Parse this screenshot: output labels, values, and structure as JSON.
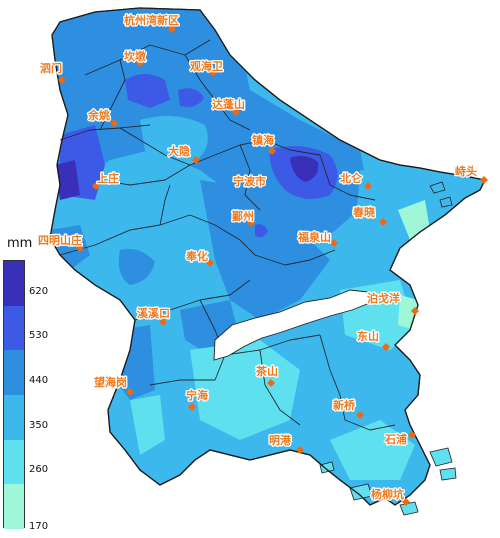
{
  "legend": {
    "unit": "mm",
    "ticks": [
      "620",
      "530",
      "440",
      "350",
      "260",
      "170"
    ],
    "bins": [
      {
        "label": "> 620",
        "color": "#3a2fb8"
      },
      {
        "label": "530-620",
        "color": "#3d5ae6"
      },
      {
        "label": "440-530",
        "color": "#2e8fe0"
      },
      {
        "label": "350-440",
        "color": "#3cb8ec"
      },
      {
        "label": "260-350",
        "color": "#5fe0ef"
      },
      {
        "label": "170-260",
        "color": "#9ef7d6"
      }
    ]
  },
  "places": [
    {
      "id": "hangzhouwan",
      "name": "杭州湾新区"
    },
    {
      "id": "kandun",
      "name": "坎墩"
    },
    {
      "id": "simen",
      "name": "泗门"
    },
    {
      "id": "guanhaiwei",
      "name": "观海卫"
    },
    {
      "id": "yuyao",
      "name": "余姚"
    },
    {
      "id": "dapengshan",
      "name": "达蓬山"
    },
    {
      "id": "dayin",
      "name": "大隐"
    },
    {
      "id": "zhenhai",
      "name": "镇海"
    },
    {
      "id": "xiaoshan",
      "name": "峙头"
    },
    {
      "id": "shangzhuang",
      "name": "上庄"
    },
    {
      "id": "ningbo",
      "name": "宁波市"
    },
    {
      "id": "beilun",
      "name": "北仑"
    },
    {
      "id": "chunxiao",
      "name": "春晓"
    },
    {
      "id": "siminshan",
      "name": "四明山庄"
    },
    {
      "id": "yinzhou",
      "name": "鄞州"
    },
    {
      "id": "fuquanshan",
      "name": "福泉山"
    },
    {
      "id": "fenghua",
      "name": "奉化"
    },
    {
      "id": "boziyang",
      "name": "泊戈洋"
    },
    {
      "id": "tangxikou",
      "name": "溪溪口"
    },
    {
      "id": "dongshan",
      "name": "东山"
    },
    {
      "id": "chashan",
      "name": "茶山"
    },
    {
      "id": "wanghaigang",
      "name": "望海岗"
    },
    {
      "id": "ninghai",
      "name": "宁海"
    },
    {
      "id": "xinqiao",
      "name": "新桥"
    },
    {
      "id": "mingang",
      "name": "明港"
    },
    {
      "id": "shipu",
      "name": "石浦"
    },
    {
      "id": "yangpeng",
      "name": "杨柳坑"
    }
  ]
}
